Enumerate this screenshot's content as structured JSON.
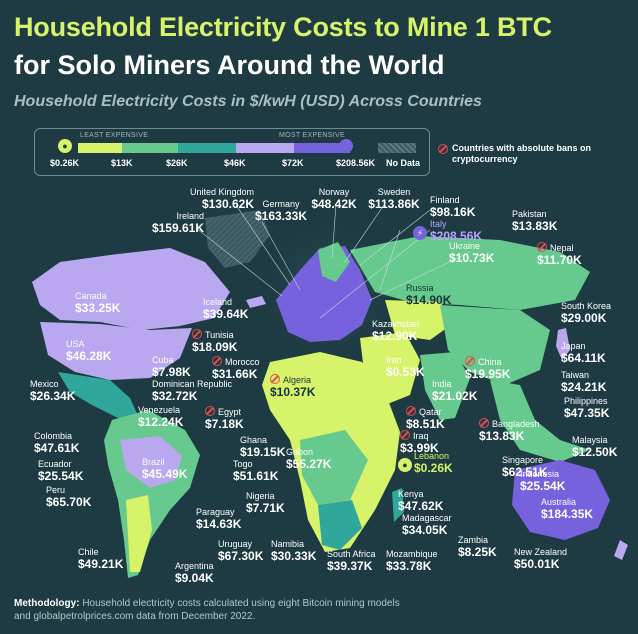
{
  "title_line1": "Household Electricity Costs to Mine 1 BTC",
  "title_line2": "for Solo Miners Around the World",
  "subtitle": "Household Electricity Costs in $/kwH (USD) Across Countries",
  "legend": {
    "least_label": "LEAST EXPENSIVE",
    "most_label": "MOST EXPENSIVE",
    "stops": [
      "$0.26K",
      "$13K",
      "$26K",
      "$46K",
      "$72K",
      "$208.56K"
    ],
    "no_data": "No Data",
    "colors": [
      "#d6f36a",
      "#66c98d",
      "#2fa79a",
      "#b9a7ef",
      "#7662dd"
    ],
    "no_data_color": "#3b5a62",
    "bans_note": "Countries with absolute bans on cryptocurrency",
    "low_badge_icon": "lightbulb-icon",
    "high_badge_icon": "lightning-icon"
  },
  "countries": [
    {
      "name": "United Kingdom",
      "value": "$130.62K"
    },
    {
      "name": "Germany",
      "value": "$163.33K"
    },
    {
      "name": "Norway",
      "value": "$48.42K"
    },
    {
      "name": "Sweden",
      "value": "$113.86K"
    },
    {
      "name": "Finland",
      "value": "$98.16K"
    },
    {
      "name": "Italy",
      "value": "$208.56K"
    },
    {
      "name": "Ireland",
      "value": "$159.61K"
    },
    {
      "name": "Ukraine",
      "value": "$10.73K"
    },
    {
      "name": "Pakistan",
      "value": "$13.83K"
    },
    {
      "name": "Nepal",
      "value": "$11.70K"
    },
    {
      "name": "Canada",
      "value": "$33.25K"
    },
    {
      "name": "Russia",
      "value": "$14.90K"
    },
    {
      "name": "South Korea",
      "value": "$29.00K"
    },
    {
      "name": "Iceland",
      "value": "$39.64K"
    },
    {
      "name": "Kazakhstan",
      "value": "$12.90K"
    },
    {
      "name": "Tunisia",
      "value": "$18.09K"
    },
    {
      "name": "USA",
      "value": "$46.28K"
    },
    {
      "name": "Japan",
      "value": "$64.11K"
    },
    {
      "name": "Cuba",
      "value": "$7.98K"
    },
    {
      "name": "Morocco",
      "value": "$31.66K"
    },
    {
      "name": "Iran",
      "value": "$0.53K"
    },
    {
      "name": "China",
      "value": "$19.95K"
    },
    {
      "name": "Taiwan",
      "value": "$24.21K"
    },
    {
      "name": "Dominican Republic",
      "value": "$32.72K"
    },
    {
      "name": "Algeria",
      "value": "$10.37K"
    },
    {
      "name": "India",
      "value": "$21.02K"
    },
    {
      "name": "Mexico",
      "value": "$26.34K"
    },
    {
      "name": "Philippines",
      "value": "$47.35K"
    },
    {
      "name": "Venezuela",
      "value": "$12.24K"
    },
    {
      "name": "Egypt",
      "value": "$7.18K"
    },
    {
      "name": "Qatar",
      "value": "$8.51K"
    },
    {
      "name": "Bangladesh",
      "value": "$13.83K"
    },
    {
      "name": "Colombia",
      "value": "$47.61K"
    },
    {
      "name": "Iraq",
      "value": "$3.99K"
    },
    {
      "name": "Malaysia",
      "value": "$12.50K"
    },
    {
      "name": "Ghana",
      "value": "$19.15K"
    },
    {
      "name": "Lebanon",
      "value": "$0.26K"
    },
    {
      "name": "Ecuador",
      "value": "$25.54K"
    },
    {
      "name": "Brazil",
      "value": "$45.49K"
    },
    {
      "name": "Togo",
      "value": "$51.61K"
    },
    {
      "name": "Singapore",
      "value": "$62.51K"
    },
    {
      "name": "Gabon",
      "value": "$55.27K"
    },
    {
      "name": "Indonesia",
      "value": "$25.54K"
    },
    {
      "name": "Peru",
      "value": "$65.70K"
    },
    {
      "name": "Nigeria",
      "value": "$7.71K"
    },
    {
      "name": "Kenya",
      "value": "$47.62K"
    },
    {
      "name": "Australia",
      "value": "$184.35K"
    },
    {
      "name": "Paraguay",
      "value": "$14.63K"
    },
    {
      "name": "Madagascar",
      "value": "$34.05K"
    },
    {
      "name": "Uruguay",
      "value": "$67.30K"
    },
    {
      "name": "Namibia",
      "value": "$30.33K"
    },
    {
      "name": "Zambia",
      "value": "$8.25K"
    },
    {
      "name": "Chile",
      "value": "$49.21K"
    },
    {
      "name": "South Africa",
      "value": "$39.37K"
    },
    {
      "name": "Mozambique",
      "value": "$33.78K"
    },
    {
      "name": "New Zealand",
      "value": "$50.01K"
    },
    {
      "name": "Argentina",
      "value": "$9.04K"
    }
  ],
  "footer": {
    "label": "Methodology:",
    "text": " Household electricity costs calculated using eight Bitcoin mining models",
    "line2": "and globalpetrolprices.com data from December 2022."
  }
}
